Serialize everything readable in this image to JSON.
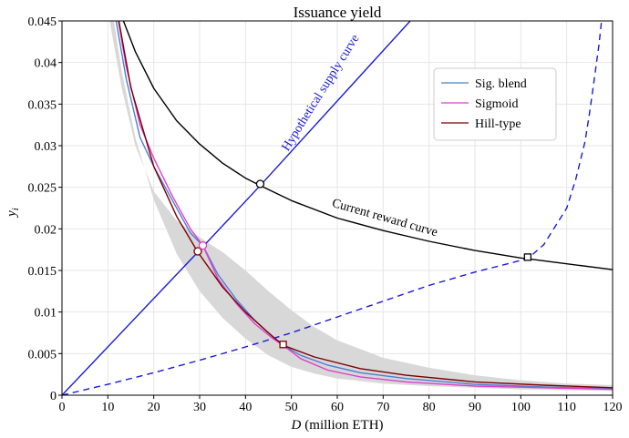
{
  "chart_data": {
    "type": "line",
    "title": "Issuance yield",
    "xlabel_var": "D",
    "xlabel_unit": "(million ETH)",
    "ylabel_base": "y",
    "ylabel_sub": "i",
    "xlim": [
      0,
      120
    ],
    "ylim": [
      0,
      0.045
    ],
    "x_ticks": [
      0,
      10,
      20,
      30,
      40,
      50,
      60,
      70,
      80,
      90,
      100,
      110,
      120
    ],
    "y_ticks": [
      0,
      0.005,
      0.01,
      0.015,
      0.02,
      0.025,
      0.03,
      0.035,
      0.04,
      0.045
    ],
    "x_tick_labels": [
      "0",
      "10",
      "20",
      "30",
      "40",
      "50",
      "60",
      "70",
      "80",
      "90",
      "100",
      "110",
      "120"
    ],
    "y_tick_labels": [
      "0",
      "0.005",
      "0.01",
      "0.015",
      "0.02",
      "0.025",
      "0.03",
      "0.035",
      "0.04",
      "0.045"
    ],
    "grid": true,
    "legend_position": "top-right",
    "legend": [
      {
        "label": "Sig. blend",
        "color": "#4a7fd4"
      },
      {
        "label": "Sigmoid",
        "color": "#e040c8"
      },
      {
        "label": "Hill-type",
        "color": "#7a0000"
      }
    ],
    "annotations": {
      "supply_curve": "Hypothetical supply curve",
      "reward_curve": "Current reward curve"
    },
    "series": [
      {
        "name": "Current reward curve",
        "color": "#000000",
        "style": "solid",
        "points": [
          [
            13.4,
            0.045
          ],
          [
            16,
            0.0413
          ],
          [
            20,
            0.0369
          ],
          [
            25,
            0.033
          ],
          [
            30,
            0.0302
          ],
          [
            35,
            0.0279
          ],
          [
            40,
            0.0261
          ],
          [
            43.2,
            0.0252
          ],
          [
            50,
            0.0234
          ],
          [
            60,
            0.0213
          ],
          [
            70,
            0.0198
          ],
          [
            80,
            0.0185
          ],
          [
            90,
            0.0174
          ],
          [
            100,
            0.0165
          ],
          [
            101.5,
            0.0164
          ],
          [
            110,
            0.0158
          ],
          [
            120,
            0.0151
          ]
        ]
      },
      {
        "name": "Hypothetical supply curve",
        "color": "#1a1ad6",
        "style": "solid",
        "points": [
          [
            0,
            0
          ],
          [
            29.6,
            0.0172
          ],
          [
            43.2,
            0.0252
          ],
          [
            75.9,
            0.045
          ]
        ]
      },
      {
        "color": "#1a1ad6",
        "style": "dashed",
        "points": [
          [
            0,
            0
          ],
          [
            10,
            0.0013
          ],
          [
            20,
            0.0027
          ],
          [
            30,
            0.0042
          ],
          [
            40,
            0.0058
          ],
          [
            50,
            0.0075
          ],
          [
            60,
            0.0094
          ],
          [
            70,
            0.0113
          ],
          [
            80,
            0.0132
          ],
          [
            90,
            0.0148
          ],
          [
            100,
            0.0162
          ],
          [
            101.5,
            0.0164
          ],
          [
            105,
            0.0181
          ],
          [
            110,
            0.0225
          ],
          [
            112,
            0.026
          ],
          [
            114,
            0.0305
          ],
          [
            115,
            0.034
          ],
          [
            116,
            0.038
          ],
          [
            117,
            0.042
          ],
          [
            117.6,
            0.045
          ]
        ]
      },
      {
        "name": "Sig. blend",
        "color": "#4a7fd4",
        "style": "solid",
        "points": [
          [
            11.8,
            0.045
          ],
          [
            14,
            0.038
          ],
          [
            17,
            0.031
          ],
          [
            20,
            0.0275
          ],
          [
            24,
            0.0235
          ],
          [
            28,
            0.0195
          ],
          [
            30.7,
            0.018
          ],
          [
            34,
            0.0145
          ],
          [
            38,
            0.0115
          ],
          [
            42,
            0.009
          ],
          [
            46,
            0.007
          ],
          [
            48.2,
            0.006
          ],
          [
            52,
            0.0048
          ],
          [
            58,
            0.0036
          ],
          [
            65,
            0.0027
          ],
          [
            75,
            0.002
          ],
          [
            90,
            0.0013
          ],
          [
            105,
            0.001
          ],
          [
            120,
            0.0008
          ]
        ]
      },
      {
        "name": "Sigmoid",
        "color": "#e040c8",
        "style": "solid",
        "points": [
          [
            12.3,
            0.045
          ],
          [
            14,
            0.0395
          ],
          [
            17,
            0.0325
          ],
          [
            20,
            0.0285
          ],
          [
            24,
            0.024
          ],
          [
            28,
            0.02
          ],
          [
            30.7,
            0.018
          ],
          [
            34,
            0.014
          ],
          [
            38,
            0.011
          ],
          [
            42,
            0.0086
          ],
          [
            46,
            0.0068
          ],
          [
            48.2,
            0.006
          ],
          [
            52,
            0.0044
          ],
          [
            58,
            0.003
          ],
          [
            65,
            0.0022
          ],
          [
            75,
            0.0016
          ],
          [
            90,
            0.0011
          ],
          [
            105,
            0.0009
          ],
          [
            120,
            0.0007
          ]
        ]
      },
      {
        "name": "Hill-type",
        "color": "#7a0000",
        "style": "solid",
        "points": [
          [
            12.4,
            0.045
          ],
          [
            15,
            0.037
          ],
          [
            20,
            0.0275
          ],
          [
            25,
            0.0215
          ],
          [
            29.6,
            0.0172
          ],
          [
            35,
            0.013
          ],
          [
            40,
            0.01
          ],
          [
            45,
            0.0075
          ],
          [
            48.2,
            0.006
          ],
          [
            55,
            0.0046
          ],
          [
            65,
            0.0032
          ],
          [
            75,
            0.0024
          ],
          [
            90,
            0.0016
          ],
          [
            105,
            0.0012
          ],
          [
            120,
            0.0009
          ]
        ]
      }
    ],
    "band": {
      "upper": [
        [
          10.4,
          0.045
        ],
        [
          13,
          0.037
        ],
        [
          16,
          0.03
        ],
        [
          20,
          0.0245
        ],
        [
          25,
          0.021
        ],
        [
          30,
          0.019
        ],
        [
          35,
          0.0172
        ],
        [
          40,
          0.015
        ],
        [
          45,
          0.0125
        ],
        [
          50,
          0.0102
        ],
        [
          55,
          0.0082
        ],
        [
          60,
          0.0066
        ],
        [
          70,
          0.0045
        ],
        [
          80,
          0.0033
        ],
        [
          90,
          0.0024
        ],
        [
          100,
          0.0018
        ],
        [
          110,
          0.0014
        ],
        [
          120,
          0.0012
        ]
      ],
      "lower": [
        [
          120,
          0.0005
        ],
        [
          110,
          0.0006
        ],
        [
          100,
          0.0007
        ],
        [
          90,
          0.0009
        ],
        [
          80,
          0.0011
        ],
        [
          70,
          0.0014
        ],
        [
          60,
          0.002
        ],
        [
          55,
          0.0026
        ],
        [
          50,
          0.0034
        ],
        [
          45,
          0.0048
        ],
        [
          40,
          0.0068
        ],
        [
          35,
          0.0093
        ],
        [
          30,
          0.0125
        ],
        [
          25,
          0.017
        ],
        [
          20,
          0.0235
        ],
        [
          16,
          0.031
        ],
        [
          13,
          0.039
        ],
        [
          11.3,
          0.045
        ]
      ],
      "color": "#d8d8d8"
    },
    "markers": [
      {
        "x": 43.2,
        "y": 0.0254,
        "shape": "circle",
        "edge": "#000000"
      },
      {
        "x": 101.5,
        "y": 0.0166,
        "shape": "square",
        "edge": "#000000"
      },
      {
        "x": 29.6,
        "y": 0.0173,
        "shape": "circle",
        "edge": "#7a0000"
      },
      {
        "x": 30.7,
        "y": 0.018,
        "shape": "circle",
        "edge": "#e040c8"
      },
      {
        "x": 48.2,
        "y": 0.0061,
        "shape": "square",
        "edge": "#7a0000"
      }
    ]
  }
}
